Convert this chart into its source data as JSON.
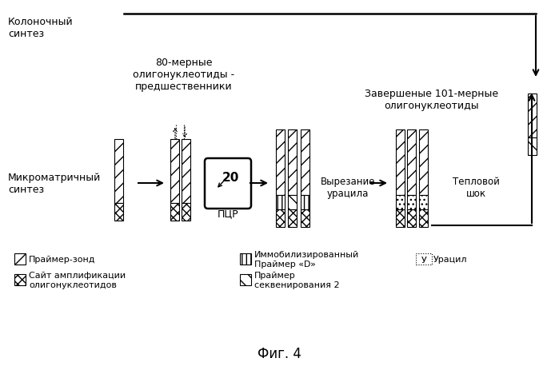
{
  "title": "Фиг. 4",
  "bg_color": "#ffffff",
  "labels": {
    "column_synthesis": "Колоночный\nсинтез",
    "micromatrix_synthesis": "Микроматричный\nсинтез",
    "precursors": "80-мерные\nолигонуклеотиды -\nпредшественники",
    "pcr_label": "ПЦР",
    "pcr_num": "20",
    "uracil_cut": "Вырезание\nурацила",
    "heat_shock": "Тепловой\nшок",
    "completed": "Завершеные 101-мерные\nолигонуклеотиды",
    "legend1": "Праймер-зонд",
    "legend2": "Сайт амплификации\nолигонуклеотидов",
    "legend3": "Иммобилизированный\nПраймер «D»",
    "legend4": "Праймер\nсеквенирования 2",
    "legend5": "Урацил"
  }
}
